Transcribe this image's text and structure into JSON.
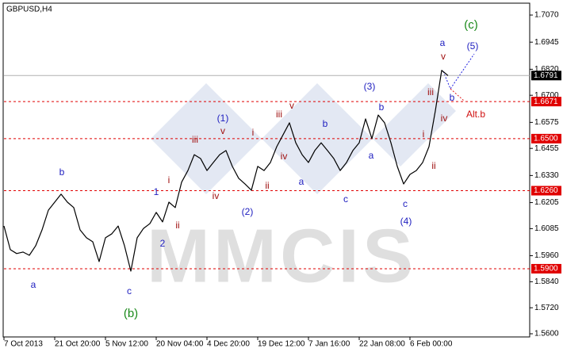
{
  "chart_data": {
    "type": "line",
    "title": "GBPUSD,H4",
    "watermark": "MMCIS",
    "categories": [
      "7 Oct 2013",
      null,
      null,
      null,
      null,
      null,
      null,
      null,
      "21 Oct 20:00",
      null,
      null,
      null,
      null,
      null,
      null,
      null,
      "5 Nov 12:00",
      null,
      null,
      null,
      null,
      null,
      null,
      null,
      "20 Nov 04:00",
      null,
      null,
      null,
      null,
      null,
      null,
      null,
      "4 Dec 20:00",
      null,
      null,
      null,
      null,
      null,
      null,
      null,
      "19 Dec 12:00",
      null,
      null,
      null,
      null,
      null,
      null,
      null,
      "7 Jan 16:00",
      null,
      null,
      null,
      null,
      null,
      null,
      null,
      "22 Jan 08:00",
      null,
      null,
      null,
      null,
      null,
      null,
      null,
      "6 Feb 00:00",
      null,
      null,
      null,
      null,
      null,
      null
    ],
    "values": [
      1.6097,
      1.5988,
      1.597,
      1.5977,
      1.5962,
      1.6006,
      1.6079,
      1.617,
      1.6207,
      1.6244,
      1.6207,
      1.6182,
      1.6079,
      1.6043,
      1.6024,
      1.5933,
      1.6043,
      1.6061,
      1.6097,
      1.6006,
      1.5889,
      1.6043,
      1.6086,
      1.6108,
      1.616,
      1.6116,
      1.6207,
      1.6182,
      1.6299,
      1.6353,
      1.6426,
      1.6408,
      1.6353,
      1.639,
      1.6426,
      1.6445,
      1.6372,
      1.6317,
      1.6291,
      1.6262,
      1.6372,
      1.6353,
      1.639,
      1.6463,
      1.6518,
      1.6573,
      1.6481,
      1.6426,
      1.639,
      1.6445,
      1.6481,
      1.6445,
      1.6408,
      1.6353,
      1.639,
      1.6445,
      1.6481,
      1.6591,
      1.65,
      1.6609,
      1.6573,
      1.6481,
      1.6372,
      1.6291,
      1.6335,
      1.6353,
      1.639,
      1.6463,
      1.6628,
      1.6815,
      1.6791
    ],
    "color": "#000000",
    "ylim": [
      1.56,
      1.707
    ],
    "yticks": [
      {
        "value": 1.707,
        "label": "1.7070"
      },
      1.6945,
      {
        "value": 1.682,
        "label": "1.6820"
      },
      {
        "value": 1.67,
        "label": "1.6700"
      },
      1.6575,
      1.6455,
      {
        "value": 1.633,
        "label": "1.6330"
      },
      1.6205,
      1.6085,
      {
        "value": 1.596,
        "label": "1.5960"
      },
      {
        "value": 1.584,
        "label": "1.5840"
      },
      {
        "value": 1.572,
        "label": "1.5720"
      },
      {
        "value": 1.56,
        "label": "1.5600"
      }
    ],
    "levels": [
      1.6671,
      {
        "value": 1.65,
        "label": "1.6500"
      },
      {
        "value": 1.626,
        "label": "1.6260"
      },
      {
        "value": 1.59,
        "label": "1.5900"
      }
    ],
    "level_color": "#e00000",
    "current_price": 1.6791,
    "annotations": [
      {
        "text": "(c)",
        "color": "#1a8a1a"
      },
      {
        "text": "(5)",
        "color": "#2020c0"
      },
      {
        "text": "a",
        "color": "#2020c0"
      },
      {
        "text": "v",
        "color": "#a01010"
      },
      {
        "text": "iii",
        "color": "#a01010"
      },
      {
        "text": "b",
        "color": "#2020c0"
      },
      {
        "text": "Alt.b",
        "color": "#d01010"
      },
      {
        "text": "iv",
        "color": "#a01010"
      },
      {
        "text": "i",
        "color": "#a01010"
      },
      {
        "text": "ii",
        "color": "#a01010"
      },
      {
        "text": "(4)",
        "color": "#2020c0"
      },
      {
        "text": "c",
        "color": "#2020c0"
      },
      {
        "text": "(3)",
        "color": "#2020c0"
      },
      {
        "text": "b",
        "color": "#2020c0"
      },
      {
        "text": "a",
        "color": "#2020c0"
      },
      {
        "text": "c",
        "color": "#2020c0"
      },
      {
        "text": "b",
        "color": "#2020c0"
      },
      {
        "text": "a",
        "color": "#2020c0"
      },
      {
        "text": "iii",
        "color": "#a01010"
      },
      {
        "text": "v",
        "color": "#a01010"
      },
      {
        "text": "iv",
        "color": "#a01010"
      },
      {
        "text": "i",
        "color": "#a01010"
      },
      {
        "text": "ii",
        "color": "#a01010"
      },
      {
        "text": "(2)",
        "color": "#2020c0"
      },
      {
        "text": "(1)",
        "color": "#2020c0"
      },
      {
        "text": "v",
        "color": "#a01010"
      },
      {
        "text": "iii",
        "color": "#a01010"
      },
      {
        "text": "iv",
        "color": "#a01010"
      },
      {
        "text": "i",
        "color": "#a01010"
      },
      {
        "text": "ii",
        "color": "#a01010"
      },
      {
        "text": "1",
        "color": "#2020c0"
      },
      {
        "text": "2",
        "color": "#2020c0"
      },
      {
        "text": "b",
        "color": "#2020c0"
      },
      {
        "text": "a",
        "color": "#2020c0"
      },
      {
        "text": "c",
        "color": "#2020c0"
      },
      {
        "text": "(b)",
        "color": "#1a8a1a"
      }
    ]
  }
}
